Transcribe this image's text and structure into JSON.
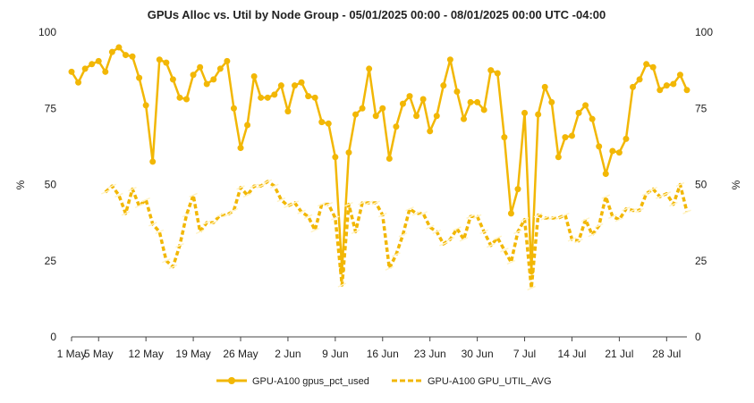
{
  "chart_data": {
    "type": "line",
    "title": "GPUs Alloc vs. Util by Node Group - 05/01/2025 00:00 - 08/01/2025 00:00 UTC -04:00",
    "ylabel": "%",
    "ylabel_right": "%",
    "ylim": [
      0,
      100
    ],
    "yticks": [
      0,
      25,
      50,
      75,
      100
    ],
    "xlim": [
      "2025-05-01",
      "2025-07-31"
    ],
    "xticks": [
      {
        "date": "2025-05-01",
        "label": "1 May"
      },
      {
        "date": "2025-05-05",
        "label": "5 May"
      },
      {
        "date": "2025-05-12",
        "label": "12 May"
      },
      {
        "date": "2025-05-19",
        "label": "19 May"
      },
      {
        "date": "2025-05-26",
        "label": "26 May"
      },
      {
        "date": "2025-06-02",
        "label": "2 Jun"
      },
      {
        "date": "2025-06-09",
        "label": "9 Jun"
      },
      {
        "date": "2025-06-16",
        "label": "16 Jun"
      },
      {
        "date": "2025-06-23",
        "label": "23 Jun"
      },
      {
        "date": "2025-06-30",
        "label": "30 Jun"
      },
      {
        "date": "2025-07-07",
        "label": "7 Jul"
      },
      {
        "date": "2025-07-14",
        "label": "14 Jul"
      },
      {
        "date": "2025-07-21",
        "label": "21 Jul"
      },
      {
        "date": "2025-07-28",
        "label": "28 Jul"
      }
    ],
    "grid": false,
    "legend_position": "bottom",
    "series": [
      {
        "name": "GPU-A100 gpus_pct_used",
        "color": "#F2B705",
        "style": "solid",
        "points": [
          [
            "2025-05-01",
            87
          ],
          [
            "2025-05-02",
            83.5
          ],
          [
            "2025-05-03",
            88
          ],
          [
            "2025-05-04",
            89.5
          ],
          [
            "2025-05-05",
            90.5
          ],
          [
            "2025-05-06",
            87
          ],
          [
            "2025-05-07",
            93.5
          ],
          [
            "2025-05-08",
            95
          ],
          [
            "2025-05-09",
            92.5
          ],
          [
            "2025-05-10",
            92
          ],
          [
            "2025-05-11",
            85
          ],
          [
            "2025-05-12",
            76
          ],
          [
            "2025-05-13",
            57.5
          ],
          [
            "2025-05-14",
            91
          ],
          [
            "2025-05-15",
            90
          ],
          [
            "2025-05-16",
            84.5
          ],
          [
            "2025-05-17",
            78.5
          ],
          [
            "2025-05-18",
            78
          ],
          [
            "2025-05-19",
            86
          ],
          [
            "2025-05-20",
            88.5
          ],
          [
            "2025-05-21",
            83
          ],
          [
            "2025-05-22",
            84.5
          ],
          [
            "2025-05-23",
            88
          ],
          [
            "2025-05-24",
            90.5
          ],
          [
            "2025-05-25",
            75
          ],
          [
            "2025-05-26",
            62
          ],
          [
            "2025-05-27",
            69.5
          ],
          [
            "2025-05-28",
            85.5
          ],
          [
            "2025-05-29",
            78.5
          ],
          [
            "2025-05-30",
            78.5
          ],
          [
            "2025-05-31",
            79.5
          ],
          [
            "2025-06-01",
            82.5
          ],
          [
            "2025-06-02",
            74
          ],
          [
            "2025-06-03",
            82.5
          ],
          [
            "2025-06-04",
            83.5
          ],
          [
            "2025-06-05",
            79
          ],
          [
            "2025-06-06",
            78.5
          ],
          [
            "2025-06-07",
            70.5
          ],
          [
            "2025-06-08",
            70
          ],
          [
            "2025-06-09",
            59
          ],
          [
            "2025-06-10",
            22
          ],
          [
            "2025-06-11",
            60.5
          ],
          [
            "2025-06-12",
            73
          ],
          [
            "2025-06-13",
            75
          ],
          [
            "2025-06-14",
            88
          ],
          [
            "2025-06-15",
            72.5
          ],
          [
            "2025-06-16",
            75
          ],
          [
            "2025-06-17",
            58.5
          ],
          [
            "2025-06-18",
            69
          ],
          [
            "2025-06-19",
            76.5
          ],
          [
            "2025-06-20",
            79
          ],
          [
            "2025-06-21",
            72.5
          ],
          [
            "2025-06-22",
            78
          ],
          [
            "2025-06-23",
            67.5
          ],
          [
            "2025-06-24",
            72.5
          ],
          [
            "2025-06-25",
            82.5
          ],
          [
            "2025-06-26",
            91
          ],
          [
            "2025-06-27",
            80.5
          ],
          [
            "2025-06-28",
            71.5
          ],
          [
            "2025-06-29",
            77
          ],
          [
            "2025-06-30",
            77
          ],
          [
            "2025-07-01",
            74.5
          ],
          [
            "2025-07-02",
            87.5
          ],
          [
            "2025-07-03",
            86.5
          ],
          [
            "2025-07-04",
            65.5
          ],
          [
            "2025-07-05",
            40.5
          ],
          [
            "2025-07-06",
            48.5
          ],
          [
            "2025-07-07",
            73.5
          ],
          [
            "2025-07-08",
            21.5
          ],
          [
            "2025-07-09",
            73
          ],
          [
            "2025-07-10",
            82
          ],
          [
            "2025-07-11",
            77
          ],
          [
            "2025-07-12",
            59
          ],
          [
            "2025-07-13",
            65.5
          ],
          [
            "2025-07-14",
            66
          ],
          [
            "2025-07-15",
            73.5
          ],
          [
            "2025-07-16",
            76
          ],
          [
            "2025-07-17",
            71.5
          ],
          [
            "2025-07-18",
            62.5
          ],
          [
            "2025-07-19",
            53.5
          ],
          [
            "2025-07-20",
            61
          ],
          [
            "2025-07-21",
            60.5
          ],
          [
            "2025-07-22",
            65
          ],
          [
            "2025-07-23",
            82
          ],
          [
            "2025-07-24",
            84.5
          ],
          [
            "2025-07-25",
            89.5
          ],
          [
            "2025-07-26",
            88.5
          ],
          [
            "2025-07-27",
            81
          ],
          [
            "2025-07-28",
            82.5
          ],
          [
            "2025-07-29",
            83
          ],
          [
            "2025-07-30",
            86
          ],
          [
            "2025-07-31",
            81
          ]
        ]
      },
      {
        "name": "GPU-A100 GPU_UTIL_AVG",
        "color": "#F2B705",
        "style": "dashed",
        "points": [
          [
            "2025-05-06",
            47.5
          ],
          [
            "2025-05-07",
            49.5
          ],
          [
            "2025-05-08",
            46.5
          ],
          [
            "2025-05-09",
            40.5
          ],
          [
            "2025-05-10",
            48.5
          ],
          [
            "2025-05-11",
            43
          ],
          [
            "2025-05-12",
            45
          ],
          [
            "2025-05-13",
            37
          ],
          [
            "2025-05-14",
            34.5
          ],
          [
            "2025-05-15",
            25
          ],
          [
            "2025-05-16",
            23
          ],
          [
            "2025-05-17",
            30
          ],
          [
            "2025-05-18",
            40
          ],
          [
            "2025-05-19",
            46.5
          ],
          [
            "2025-05-20",
            34.5
          ],
          [
            "2025-05-21",
            37.5
          ],
          [
            "2025-05-22",
            37.5
          ],
          [
            "2025-05-23",
            40
          ],
          [
            "2025-05-24",
            40
          ],
          [
            "2025-05-25",
            41.5
          ],
          [
            "2025-05-26",
            49
          ],
          [
            "2025-05-27",
            46.5
          ],
          [
            "2025-05-28",
            49.5
          ],
          [
            "2025-05-29",
            49.5
          ],
          [
            "2025-05-30",
            51
          ],
          [
            "2025-05-31",
            49.5
          ],
          [
            "2025-06-01",
            45
          ],
          [
            "2025-06-02",
            43
          ],
          [
            "2025-06-03",
            44
          ],
          [
            "2025-06-04",
            41
          ],
          [
            "2025-06-05",
            39.5
          ],
          [
            "2025-06-06",
            35
          ],
          [
            "2025-06-07",
            43.5
          ],
          [
            "2025-06-08",
            43.5
          ],
          [
            "2025-06-09",
            39
          ],
          [
            "2025-06-10",
            17
          ],
          [
            "2025-06-11",
            43.5
          ],
          [
            "2025-06-12",
            34.5
          ],
          [
            "2025-06-13",
            44
          ],
          [
            "2025-06-14",
            44
          ],
          [
            "2025-06-15",
            44
          ],
          [
            "2025-06-16",
            40
          ],
          [
            "2025-06-17",
            22.5
          ],
          [
            "2025-06-18",
            27
          ],
          [
            "2025-06-19",
            33.5
          ],
          [
            "2025-06-20",
            42
          ],
          [
            "2025-06-21",
            40.5
          ],
          [
            "2025-06-22",
            40.5
          ],
          [
            "2025-06-23",
            36
          ],
          [
            "2025-06-24",
            34.5
          ],
          [
            "2025-06-25",
            30.5
          ],
          [
            "2025-06-26",
            32
          ],
          [
            "2025-06-27",
            35.5
          ],
          [
            "2025-06-28",
            32
          ],
          [
            "2025-06-29",
            39.5
          ],
          [
            "2025-06-30",
            39.5
          ],
          [
            "2025-07-01",
            34.5
          ],
          [
            "2025-07-02",
            30
          ],
          [
            "2025-07-03",
            32.5
          ],
          [
            "2025-07-04",
            28.5
          ],
          [
            "2025-07-05",
            24.5
          ],
          [
            "2025-07-06",
            34.5
          ],
          [
            "2025-07-07",
            38.5
          ],
          [
            "2025-07-08",
            16
          ],
          [
            "2025-07-09",
            40
          ],
          [
            "2025-07-10",
            39
          ],
          [
            "2025-07-11",
            39
          ],
          [
            "2025-07-12",
            39
          ],
          [
            "2025-07-13",
            40
          ],
          [
            "2025-07-14",
            32
          ],
          [
            "2025-07-15",
            31.5
          ],
          [
            "2025-07-16",
            38.5
          ],
          [
            "2025-07-17",
            33.5
          ],
          [
            "2025-07-18",
            36.5
          ],
          [
            "2025-07-19",
            46
          ],
          [
            "2025-07-20",
            39.5
          ],
          [
            "2025-07-21",
            38.5
          ],
          [
            "2025-07-22",
            42
          ],
          [
            "2025-07-23",
            41.5
          ],
          [
            "2025-07-24",
            41.5
          ],
          [
            "2025-07-25",
            47
          ],
          [
            "2025-07-26",
            48.5
          ],
          [
            "2025-07-27",
            46
          ],
          [
            "2025-07-28",
            47
          ],
          [
            "2025-07-29",
            43.5
          ],
          [
            "2025-07-30",
            50
          ],
          [
            "2025-07-31",
            41
          ]
        ]
      }
    ]
  }
}
